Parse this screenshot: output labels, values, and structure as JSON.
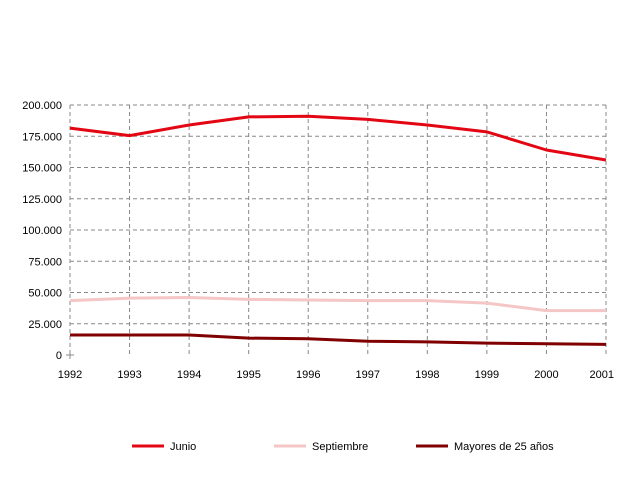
{
  "chart_data": {
    "type": "line",
    "x": [
      1992,
      1993,
      1994,
      1995,
      1996,
      1997,
      1998,
      1999,
      2000,
      2001
    ],
    "x_tick_labels": [
      "1992",
      "1993",
      "1994",
      "1995",
      "1996",
      "1997",
      "1998",
      "1999",
      "2000",
      "2001"
    ],
    "y_tick_labels": [
      "0",
      "25.000",
      "50.000",
      "75.000",
      "100.000",
      "125.000",
      "150.000",
      "175.000",
      "200.000"
    ],
    "ylim": [
      0,
      200000
    ],
    "grid": true,
    "legend_position": "bottom",
    "series": [
      {
        "name": "Junio",
        "color": "#e30613",
        "values": [
          181500,
          175500,
          184000,
          190500,
          191000,
          188500,
          184000,
          178500,
          164000,
          156000
        ]
      },
      {
        "name": "Septiembre",
        "color": "#f5c6c6",
        "values": [
          43500,
          45500,
          46000,
          44500,
          44000,
          43500,
          43500,
          41500,
          35500,
          35500
        ]
      },
      {
        "name": "Mayores de 25 años",
        "color": "#800000",
        "values": [
          16000,
          16000,
          16000,
          13500,
          13000,
          11000,
          10500,
          9500,
          9000,
          8500
        ]
      }
    ]
  }
}
